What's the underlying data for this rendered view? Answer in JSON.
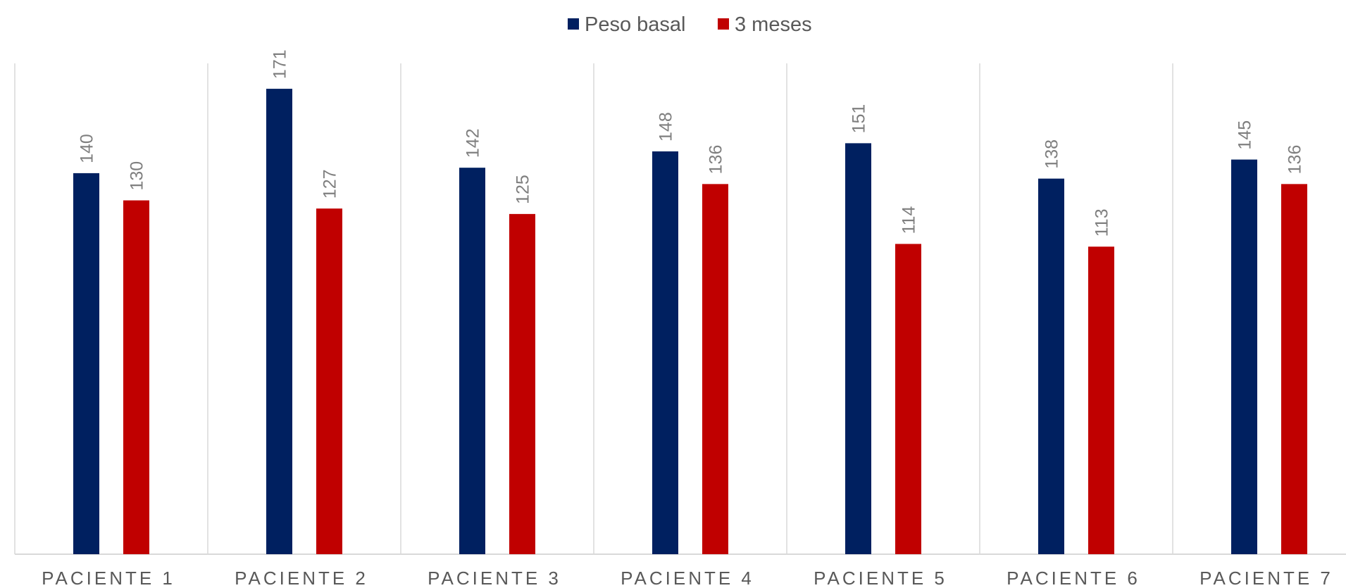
{
  "chart_data": {
    "type": "bar",
    "title": "",
    "xlabel": "",
    "ylabel": "",
    "categories": [
      "PACIENTE 1",
      "PACIENTE 2",
      "PACIENTE 3",
      "PACIENTE 4",
      "PACIENTE 5",
      "PACIENTE 6",
      "PACIENTE 7"
    ],
    "series": [
      {
        "name": "Peso basal",
        "color": "#002060",
        "values": [
          140,
          171,
          142,
          148,
          151,
          138,
          145
        ]
      },
      {
        "name": "3 meses",
        "color": "#c00000",
        "values": [
          130,
          127,
          125,
          136,
          114,
          113,
          136
        ]
      }
    ],
    "ylim": [
      0,
      180
    ],
    "grid": "vertical category separators",
    "legend": "top-center",
    "data_labels": "rotated vertical above bars"
  }
}
